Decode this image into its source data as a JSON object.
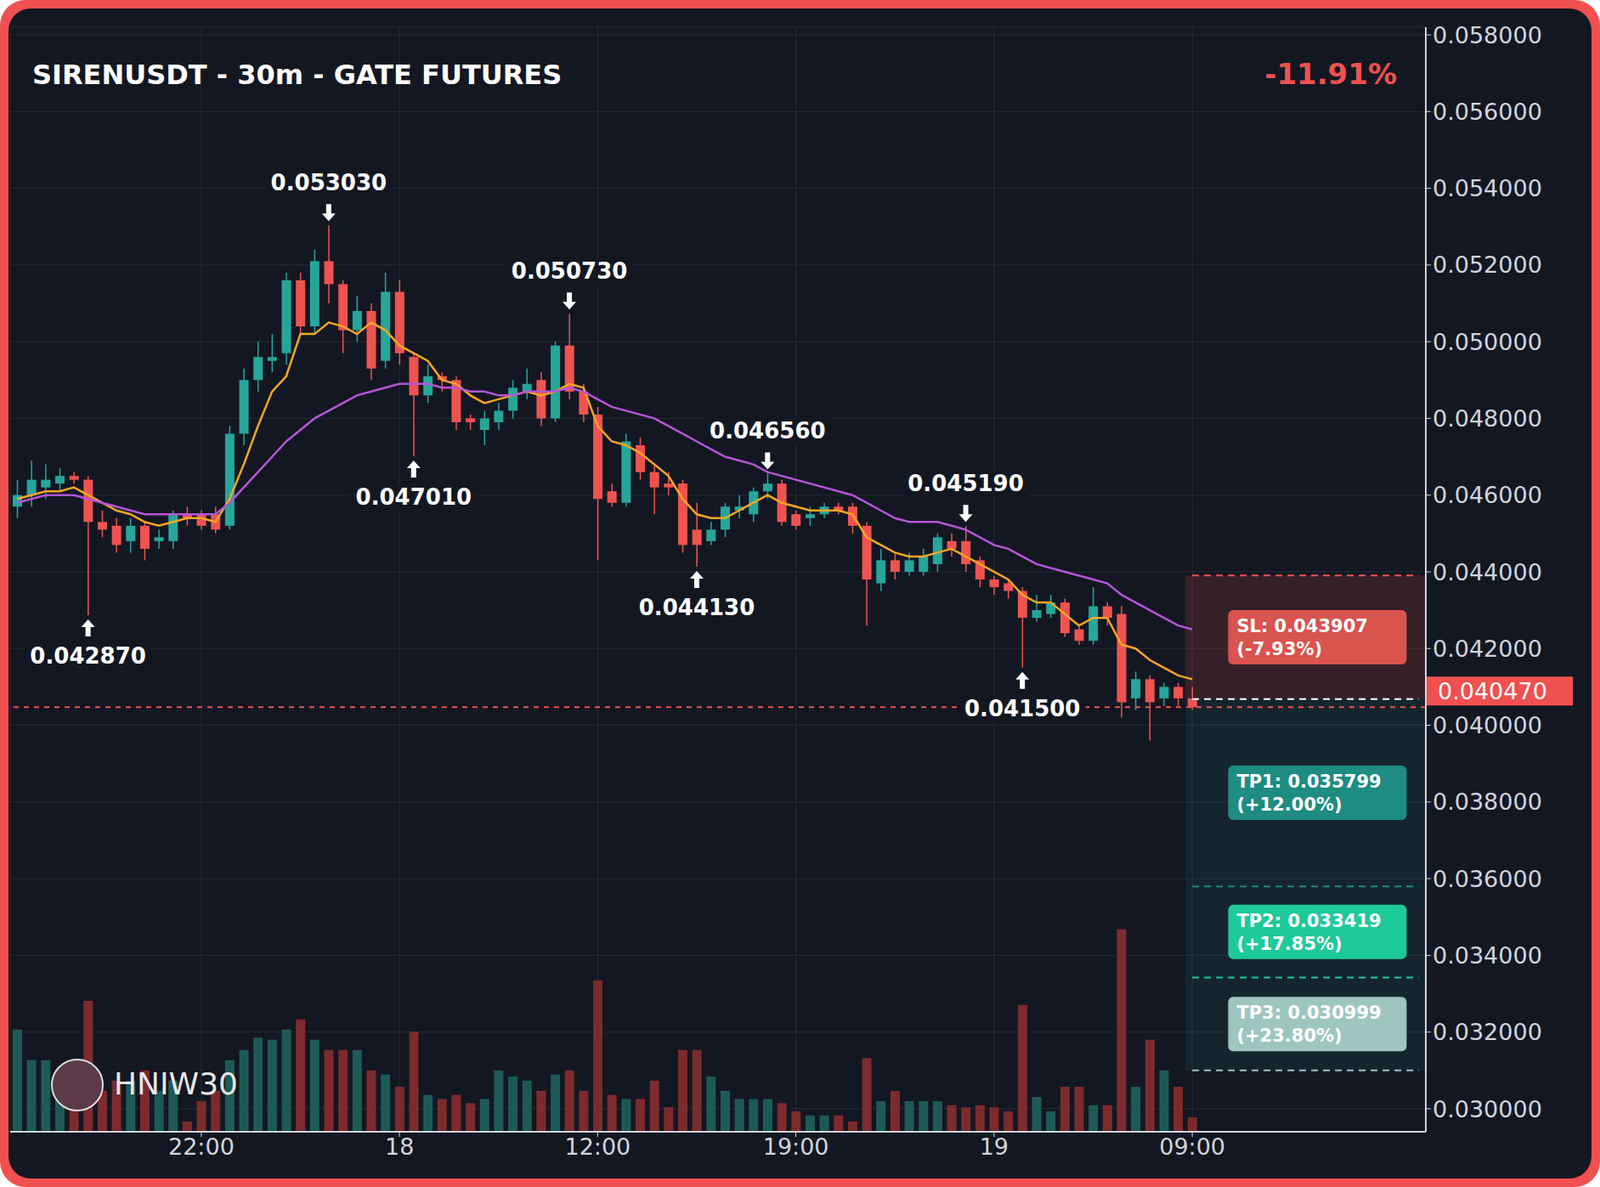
{
  "chart_data": {
    "type": "candlestick",
    "title": "SIRENUSDT - 30m - GATE FUTURES",
    "change": {
      "value": -11.91,
      "label": "-11.91%"
    },
    "watermark": "HNIW30",
    "categories": [
      null,
      null,
      null,
      null,
      null,
      null,
      null,
      null,
      null,
      null,
      null,
      null,
      null,
      "22:00",
      null,
      null,
      null,
      null,
      null,
      null,
      null,
      null,
      null,
      null,
      null,
      null,
      null,
      "18",
      null,
      null,
      null,
      null,
      null,
      null,
      null,
      null,
      null,
      null,
      null,
      null,
      null,
      "12:00",
      null,
      null,
      null,
      null,
      null,
      null,
      null,
      null,
      null,
      null,
      null,
      null,
      null,
      "19:00",
      null,
      null,
      null,
      null,
      null,
      null,
      null,
      null,
      null,
      null,
      null,
      null,
      null,
      "19",
      null,
      null,
      null,
      null,
      null,
      null,
      null,
      null,
      null,
      null,
      null,
      null,
      null,
      "09:00",
      null,
      null,
      null,
      null,
      null,
      null,
      null,
      null,
      null,
      null,
      null,
      null,
      null,
      null,
      null,
      null
    ],
    "open": [
      0.0457,
      0.046,
      0.0462,
      0.0463,
      0.0465,
      0.0464,
      0.0453,
      0.0452,
      0.0448,
      0.0452,
      0.0448,
      0.0448,
      0.0455,
      0.0455,
      0.0455,
      0.0452,
      0.0476,
      0.049,
      0.0495,
      0.0497,
      0.0516,
      0.0504,
      0.0521,
      0.0515,
      0.0503,
      0.0508,
      0.0495,
      0.0513,
      0.0496,
      0.0486,
      0.0491,
      0.049,
      0.048,
      0.0477,
      0.0479,
      0.0482,
      0.0487,
      0.049,
      0.048,
      0.0499,
      0.0487,
      0.0481,
      0.0461,
      0.0458,
      0.0473,
      0.0466,
      0.0463,
      0.0463,
      0.0451,
      0.0448,
      0.0451,
      0.0456,
      0.0455,
      0.0461,
      0.0463,
      0.0455,
      0.0454,
      0.0455,
      0.0457,
      0.0457,
      0.0452,
      0.0437,
      0.0443,
      0.044,
      0.044,
      0.0442,
      0.0448,
      0.0448,
      0.0443,
      0.0438,
      0.0437,
      0.0435,
      0.0428,
      0.0429,
      0.0432,
      0.0425,
      0.0422,
      0.0431,
      0.0429,
      0.0407,
      0.0412,
      0.0407,
      0.041,
      0.0407,
      null,
      null,
      null,
      null,
      null,
      null,
      null,
      null,
      null,
      null,
      null,
      null,
      null,
      null,
      null,
      null
    ],
    "high": [
      0.0464,
      0.0469,
      0.0468,
      0.0467,
      0.0466,
      0.0465,
      0.0456,
      0.0454,
      0.0454,
      0.0453,
      0.0451,
      0.0456,
      0.0457,
      0.0456,
      0.0457,
      0.0478,
      0.0493,
      0.05,
      0.0502,
      0.0518,
      0.0518,
      0.0524,
      0.05303,
      0.0516,
      0.0512,
      0.051,
      0.0518,
      0.0516,
      0.0497,
      0.0494,
      0.0492,
      0.0491,
      0.0481,
      0.0482,
      0.0484,
      0.049,
      0.0493,
      0.0492,
      0.05,
      0.05073,
      0.0489,
      0.0483,
      0.0463,
      0.0476,
      0.0475,
      0.0468,
      0.0466,
      0.0464,
      0.0458,
      0.0453,
      0.0458,
      0.046,
      0.0462,
      0.04656,
      0.0464,
      0.0456,
      0.0457,
      0.0458,
      0.0458,
      0.0458,
      0.0453,
      0.0446,
      0.0445,
      0.0445,
      0.0446,
      0.045,
      0.045,
      0.04519,
      0.0444,
      0.0439,
      0.0438,
      0.0436,
      0.0434,
      0.0434,
      0.0433,
      0.0426,
      0.0436,
      0.0432,
      0.0431,
      0.0414,
      0.0413,
      0.0411,
      0.0411,
      0.041,
      null,
      null,
      null,
      null,
      null,
      null,
      null,
      null,
      null,
      null,
      null,
      null,
      null,
      null,
      null,
      null
    ],
    "low": [
      0.0454,
      0.0457,
      0.0459,
      0.0461,
      0.0463,
      0.04287,
      0.0449,
      0.0445,
      0.0445,
      0.0443,
      0.0446,
      0.0446,
      0.0452,
      0.0451,
      0.045,
      0.0451,
      0.0473,
      0.0487,
      0.0492,
      0.0494,
      0.0502,
      0.0502,
      0.051,
      0.0497,
      0.05,
      0.049,
      0.0493,
      0.0494,
      0.04701,
      0.0484,
      0.0487,
      0.0477,
      0.0477,
      0.0473,
      0.0477,
      0.048,
      0.0485,
      0.0478,
      0.0479,
      0.0485,
      0.0479,
      0.0443,
      0.0457,
      0.0457,
      0.0464,
      0.0455,
      0.046,
      0.0445,
      0.04413,
      0.0447,
      0.0449,
      0.0454,
      0.0453,
      0.0459,
      0.0452,
      0.0451,
      0.0452,
      0.0454,
      0.0455,
      0.045,
      0.0426,
      0.0435,
      0.0438,
      0.0439,
      0.0439,
      0.044,
      0.0444,
      0.044,
      0.0436,
      0.0434,
      0.0433,
      0.0415,
      0.0427,
      0.0428,
      0.0423,
      0.0421,
      0.0421,
      0.0426,
      0.0402,
      0.0404,
      0.0396,
      0.0405,
      0.0405,
      0.0404,
      null,
      null,
      null,
      null,
      null,
      null,
      null,
      null,
      null,
      null,
      null,
      null,
      null,
      null,
      null,
      null
    ],
    "close": [
      0.046,
      0.0464,
      0.0464,
      0.0465,
      0.0464,
      0.0453,
      0.0451,
      0.0447,
      0.0452,
      0.0446,
      0.0449,
      0.0455,
      0.0454,
      0.0452,
      0.0451,
      0.0476,
      0.049,
      0.0496,
      0.0496,
      0.0516,
      0.0504,
      0.0521,
      0.0515,
      0.0503,
      0.0508,
      0.0493,
      0.0513,
      0.0497,
      0.0486,
      0.0491,
      0.049,
      0.0479,
      0.0479,
      0.048,
      0.0482,
      0.0488,
      0.0489,
      0.048,
      0.0499,
      0.0487,
      0.0481,
      0.0459,
      0.0458,
      0.0474,
      0.0466,
      0.0462,
      0.0462,
      0.0447,
      0.0447,
      0.0451,
      0.0457,
      0.0457,
      0.0461,
      0.0463,
      0.0453,
      0.0452,
      0.0455,
      0.0457,
      0.0456,
      0.0452,
      0.0438,
      0.0443,
      0.044,
      0.0443,
      0.0444,
      0.0449,
      0.0446,
      0.0442,
      0.0438,
      0.0436,
      0.0435,
      0.0428,
      0.043,
      0.0432,
      0.0424,
      0.0422,
      0.0431,
      0.0428,
      0.0406,
      0.0412,
      0.0406,
      0.041,
      0.0407,
      0.04047,
      null,
      null,
      null,
      null,
      null,
      null,
      null,
      null,
      null,
      null,
      null,
      null,
      null,
      null,
      null,
      null
    ],
    "volume": [
      50,
      35,
      35,
      30,
      25,
      64,
      20,
      25,
      25,
      30,
      20,
      25,
      5,
      15,
      20,
      35,
      40,
      46,
      45,
      50,
      55,
      45,
      40,
      40,
      40,
      30,
      28,
      22,
      49,
      18,
      16,
      18,
      14,
      16,
      30,
      27,
      25,
      20,
      28,
      30,
      20,
      74,
      18,
      16,
      16,
      25,
      12,
      40,
      40,
      27,
      20,
      16,
      16,
      16,
      14,
      10,
      8,
      8,
      8,
      5,
      36,
      15,
      20,
      15,
      15,
      15,
      13,
      12,
      13,
      12,
      10,
      62,
      17,
      10,
      22,
      22,
      13,
      13,
      99,
      22,
      45,
      30,
      22,
      7,
      null,
      null,
      null,
      null,
      null,
      null,
      null,
      null,
      null,
      null,
      null,
      null,
      null,
      null,
      null,
      null
    ],
    "y2lim": [
      0,
      540
    ],
    "series": [
      {
        "type": "line",
        "color": "#f5a623",
        "values": [
          0.0459,
          0.046,
          0.0461,
          0.0461,
          0.0462,
          0.046,
          0.0458,
          0.0456,
          0.0455,
          0.0453,
          0.0452,
          0.0453,
          0.0454,
          0.0454,
          0.0453,
          0.0459,
          0.0468,
          0.0478,
          0.0487,
          0.0491,
          0.0502,
          0.0502,
          0.0505,
          0.0504,
          0.0502,
          0.0505,
          0.0503,
          0.0499,
          0.0497,
          0.0495,
          0.049,
          0.0489,
          0.0486,
          0.0484,
          0.0485,
          0.0486,
          0.0487,
          0.0486,
          0.0487,
          0.0489,
          0.0488,
          0.0478,
          0.0474,
          0.0473,
          0.0471,
          0.0468,
          0.0465,
          0.0459,
          0.0455,
          0.0454,
          0.0454,
          0.0456,
          0.0458,
          0.046,
          0.0458,
          0.0457,
          0.0456,
          0.0456,
          0.0456,
          0.0455,
          0.0449,
          0.0447,
          0.0445,
          0.0444,
          0.0444,
          0.0445,
          0.0446,
          0.0444,
          0.0442,
          0.044,
          0.0438,
          0.0434,
          0.0432,
          0.0432,
          0.0429,
          0.0426,
          0.0428,
          0.0428,
          0.0421,
          0.042,
          0.0417,
          0.0415,
          0.0413,
          0.0412,
          null,
          null,
          null,
          null,
          null,
          null,
          null,
          null,
          null,
          null,
          null,
          null,
          null,
          null,
          null,
          null
        ]
      },
      {
        "type": "line",
        "color": "#b455d6",
        "values": [
          0.0458,
          0.0459,
          0.046,
          0.046,
          0.046,
          0.0459,
          0.0458,
          0.0457,
          0.0456,
          0.0455,
          0.0455,
          0.0455,
          0.0455,
          0.0455,
          0.0455,
          0.0458,
          0.0462,
          0.0466,
          0.047,
          0.0474,
          0.0477,
          0.048,
          0.0482,
          0.0484,
          0.0486,
          0.0487,
          0.0488,
          0.0489,
          0.0489,
          0.0489,
          0.0488,
          0.0488,
          0.0487,
          0.0487,
          0.0486,
          0.0486,
          0.0487,
          0.0487,
          0.0487,
          0.0488,
          0.0487,
          0.0485,
          0.0483,
          0.0482,
          0.0481,
          0.048,
          0.0478,
          0.0476,
          0.0474,
          0.0472,
          0.047,
          0.0469,
          0.0468,
          0.0466,
          0.0465,
          0.0464,
          0.0463,
          0.0462,
          0.0461,
          0.046,
          0.0458,
          0.0456,
          0.0454,
          0.0453,
          0.0453,
          0.0453,
          0.0452,
          0.0451,
          0.0449,
          0.0447,
          0.0446,
          0.0444,
          0.0442,
          0.0441,
          0.044,
          0.0439,
          0.0438,
          0.0437,
          0.0434,
          0.0432,
          0.043,
          0.0428,
          0.0426,
          0.0425,
          null,
          null,
          null,
          null,
          null,
          null,
          null,
          null,
          null,
          null,
          null,
          null,
          null,
          null,
          null,
          null
        ]
      }
    ],
    "ylim": [
      0.0294,
      0.0582
    ],
    "yticks": [
      {
        "value": 0.03,
        "label": "0.030000"
      },
      {
        "value": 0.032,
        "label": "0.032000"
      },
      {
        "value": 0.034,
        "label": "0.034000"
      },
      {
        "value": 0.036,
        "label": "0.036000"
      },
      {
        "value": 0.038,
        "label": "0.038000"
      },
      {
        "value": 0.04,
        "label": "0.040000"
      },
      {
        "value": 0.042,
        "label": "0.042000"
      },
      {
        "value": 0.044,
        "label": "0.044000"
      },
      {
        "value": 0.046,
        "label": "0.046000"
      },
      {
        "value": 0.048,
        "label": "0.048000"
      },
      {
        "value": 0.05,
        "label": "0.050000"
      },
      {
        "value": 0.052,
        "label": "0.052000"
      },
      {
        "value": 0.054,
        "label": "0.054000"
      },
      {
        "value": 0.056,
        "label": "0.056000"
      },
      {
        "value": 0.058,
        "label": "0.058000"
      }
    ],
    "grid": true,
    "annotations": [
      {
        "x": 5,
        "value": 0.04287,
        "label": "0.042870",
        "kind": "low"
      },
      {
        "x": 22,
        "value": 0.05303,
        "label": "0.053030",
        "kind": "high"
      },
      {
        "x": 28,
        "value": 0.04701,
        "label": "0.047010",
        "kind": "low"
      },
      {
        "x": 39,
        "value": 0.05073,
        "label": "0.050730",
        "kind": "high"
      },
      {
        "x": 48,
        "value": 0.04413,
        "label": "0.044130",
        "kind": "low"
      },
      {
        "x": 53,
        "value": 0.04656,
        "label": "0.046560",
        "kind": "high"
      },
      {
        "x": 67,
        "value": 0.04519,
        "label": "0.045190",
        "kind": "high"
      },
      {
        "x": 71,
        "value": 0.0415,
        "label": "0.041500",
        "kind": "low"
      }
    ],
    "current_price": {
      "value": 0.04047,
      "label": "0.040470",
      "color": "#f05050"
    },
    "trade": {
      "start": 83,
      "entry": 0.04068,
      "stop_loss": {
        "value": 0.043907,
        "label": "SL: 0.043907",
        "detail": "(-7.93%)",
        "color": "#d9534f"
      },
      "targets": [
        {
          "value": 0.035799,
          "label": "TP1: 0.035799",
          "detail": "(+12.00%)",
          "color": "#1e8c80"
        },
        {
          "value": 0.033419,
          "label": "TP2: 0.033419",
          "detail": "(+17.85%)",
          "color": "#1ec99a"
        },
        {
          "value": 0.030999,
          "label": "TP3: 0.030999",
          "detail": "(+23.80%)",
          "color": "#9fc5c0"
        }
      ]
    }
  }
}
